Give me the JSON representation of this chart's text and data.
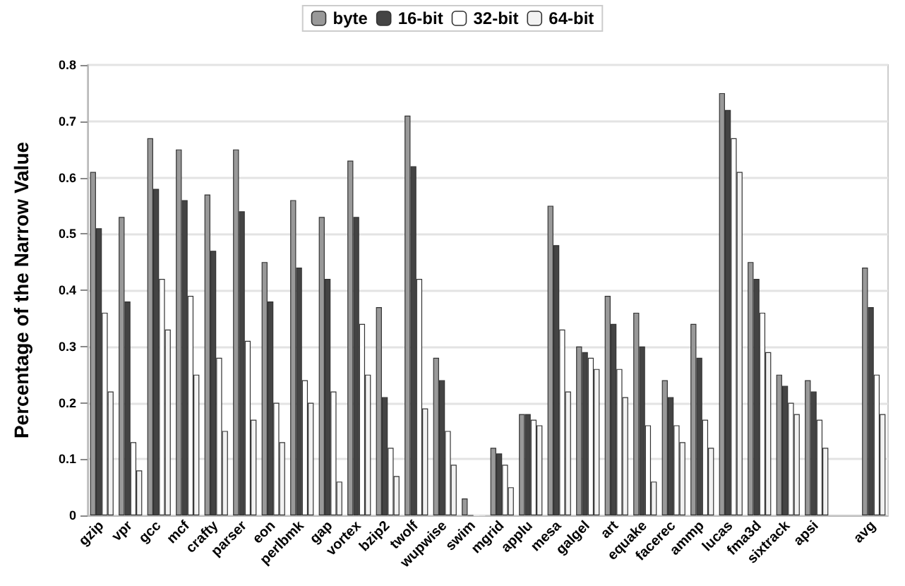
{
  "chart_data": {
    "type": "bar",
    "ylabel": "Percentage of the Narrow Value",
    "categories": [
      "gzip",
      "vpr",
      "gcc",
      "mcf",
      "crafty",
      "parser",
      "eon",
      "perlbmk",
      "gap",
      "vortex",
      "bzip2",
      "twolf",
      "wupwise",
      "swim",
      "mgrid",
      "applu",
      "mesa",
      "galgel",
      "art",
      "equake",
      "facerec",
      "ammp",
      "lucas",
      "fma3d",
      "sixtrack",
      "apsi",
      null,
      "avg"
    ],
    "series": [
      {
        "name": "byte",
        "color": "#999999",
        "values": [
          0.61,
          0.53,
          0.67,
          0.65,
          0.57,
          0.65,
          0.45,
          0.56,
          0.53,
          0.63,
          0.37,
          0.71,
          0.28,
          0.03,
          0.12,
          0.18,
          0.55,
          0.3,
          0.39,
          0.36,
          0.24,
          0.34,
          0.75,
          0.45,
          0.25,
          0.24,
          null,
          0.44
        ]
      },
      {
        "name": "16-bit",
        "color": "#444444",
        "values": [
          0.51,
          0.38,
          0.58,
          0.56,
          0.47,
          0.54,
          0.38,
          0.44,
          0.42,
          0.53,
          0.21,
          0.62,
          0.24,
          0,
          0.11,
          0.18,
          0.48,
          0.29,
          0.34,
          0.3,
          0.21,
          0.28,
          0.72,
          0.42,
          0.23,
          0.22,
          null,
          0.37
        ]
      },
      {
        "name": "32-bit",
        "color": "#ffffff",
        "values": [
          0.36,
          0.13,
          0.42,
          0.39,
          0.28,
          0.31,
          0.2,
          0.24,
          0.22,
          0.34,
          0.12,
          0.42,
          0.15,
          0,
          0.09,
          0.17,
          0.33,
          0.28,
          0.26,
          0.16,
          0.16,
          0.17,
          0.67,
          0.36,
          0.2,
          0.17,
          null,
          0.25
        ]
      },
      {
        "name": "64-bit",
        "color": "#f2f2f2",
        "values": [
          0.22,
          0.08,
          0.33,
          0.25,
          0.15,
          0.17,
          0.13,
          0.2,
          0.06,
          0.25,
          0.07,
          0.19,
          0.09,
          0,
          0.05,
          0.16,
          0.22,
          0.26,
          0.21,
          0.06,
          0.13,
          0.12,
          0.61,
          0.29,
          0.18,
          0.12,
          null,
          0.18
        ]
      }
    ],
    "ylim": [
      0,
      0.8
    ],
    "yticks": [
      0,
      0.1,
      0.2,
      0.3,
      0.4,
      0.5,
      0.6,
      0.7,
      0.8
    ],
    "grid": "y",
    "legend": "top"
  }
}
